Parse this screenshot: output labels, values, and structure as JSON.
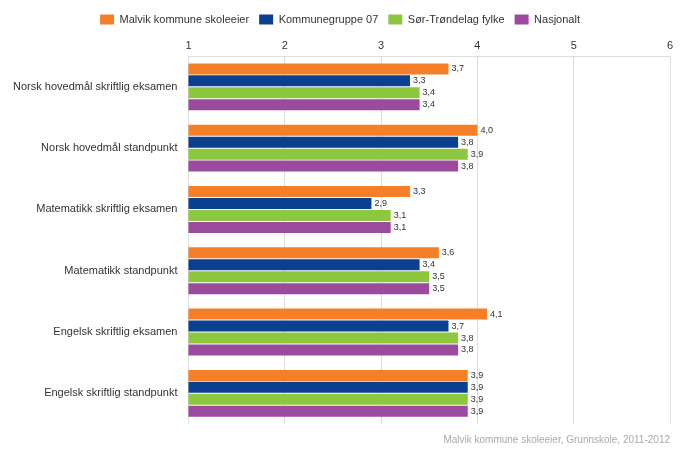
{
  "chart_data": {
    "type": "bar",
    "orientation": "horizontal",
    "categories": [
      "Norsk hovedmål skriftlig eksamen",
      "Norsk hovedmål standpunkt",
      "Matematikk skriftlig eksamen",
      "Matematikk standpunkt",
      "Engelsk skriftlig eksamen",
      "Engelsk skriftlig standpunkt"
    ],
    "series": [
      {
        "name": "Malvik kommune skoleeier",
        "color": "#f57f29",
        "values": [
          3.7,
          4.0,
          3.3,
          3.6,
          4.1,
          3.9
        ],
        "value_labels": [
          "3,7",
          "4,0",
          "3,3",
          "3,6",
          "4,1",
          "3,9"
        ]
      },
      {
        "name": "Kommunegruppe 07",
        "color": "#0b3f8f",
        "values": [
          3.3,
          3.8,
          2.9,
          3.4,
          3.7,
          3.9
        ],
        "value_labels": [
          "3,3",
          "3,8",
          "2,9",
          "3,4",
          "3,7",
          "3,9"
        ]
      },
      {
        "name": "Sør-Trøndelag fylke",
        "color": "#8dc63f",
        "values": [
          3.4,
          3.9,
          3.1,
          3.5,
          3.8,
          3.9
        ],
        "value_labels": [
          "3,4",
          "3,9",
          "3,1",
          "3,5",
          "3,8",
          "3,9"
        ]
      },
      {
        "name": "Nasjonalt",
        "color": "#9b4a9e",
        "values": [
          3.4,
          3.8,
          3.1,
          3.5,
          3.8,
          3.9
        ],
        "value_labels": [
          "3,4",
          "3,8",
          "3,1",
          "3,5",
          "3,8",
          "3,9"
        ]
      }
    ],
    "xlim": [
      1,
      6
    ],
    "xticks": [
      1,
      2,
      3,
      4,
      5,
      6
    ],
    "grid": true,
    "legend": "top",
    "data_labels": true,
    "annotations": [
      "Malvik kommune skoleeier, Grunnskole, 2011-2012"
    ]
  }
}
